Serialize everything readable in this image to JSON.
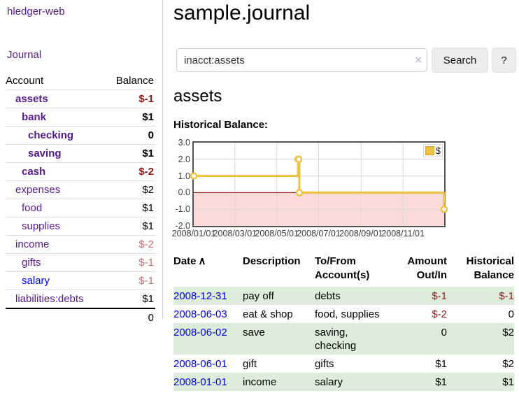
{
  "sidebar": {
    "app_title": "hledger-web",
    "nav": {
      "journal": "Journal"
    },
    "accounts_table": {
      "headers": {
        "account": "Account",
        "balance": "Balance"
      },
      "rows": [
        {
          "name": "assets",
          "indent": 1,
          "bold": true,
          "balance": "$-1",
          "balance_style": "neg-strong"
        },
        {
          "name": "bank",
          "indent": 2,
          "bold": true,
          "balance": "$1",
          "balance_style": "normal"
        },
        {
          "name": "checking",
          "indent": 3,
          "bold": true,
          "balance": "0",
          "balance_style": "normal"
        },
        {
          "name": "saving",
          "indent": 3,
          "bold": true,
          "balance": "$1",
          "balance_style": "normal"
        },
        {
          "name": "cash",
          "indent": 2,
          "bold": true,
          "balance": "$-2",
          "balance_style": "neg-strong"
        },
        {
          "name": "expenses",
          "indent": 1,
          "bold": false,
          "balance": "$2",
          "balance_style": "normal"
        },
        {
          "name": "food",
          "indent": 2,
          "bold": false,
          "balance": "$1",
          "balance_style": "normal"
        },
        {
          "name": "supplies",
          "indent": 2,
          "bold": false,
          "balance": "$1",
          "balance_style": "normal"
        },
        {
          "name": "income",
          "indent": 1,
          "bold": false,
          "balance": "$-2",
          "balance_style": "neg-soft"
        },
        {
          "name": "gifts",
          "indent": 2,
          "bold": false,
          "balance": "$-1",
          "balance_style": "neg-soft"
        },
        {
          "name": "salary",
          "indent": 2,
          "bold": false,
          "link_color": "blue",
          "balance": "$-1",
          "balance_style": "neg-soft"
        },
        {
          "name": "liabilities:debts",
          "indent": 1,
          "bold": false,
          "balance": "$1",
          "balance_style": "normal"
        }
      ],
      "total": "0"
    }
  },
  "header": {
    "title": "sample.journal"
  },
  "search": {
    "value": "inacct:assets",
    "clear_icon": "×",
    "button": "Search",
    "help_button": "?"
  },
  "account_page": {
    "heading": "assets",
    "chart_label": "Historical Balance:"
  },
  "chart_data": {
    "type": "line",
    "step": true,
    "title": "Historical Balance",
    "series": [
      {
        "name": "$",
        "color": "#edc240",
        "points": [
          {
            "date": "2008-01-01",
            "value": 1
          },
          {
            "date": "2008-06-01",
            "value": 2
          },
          {
            "date": "2008-06-02",
            "value": 2
          },
          {
            "date": "2008-06-03",
            "value": 0
          },
          {
            "date": "2008-12-31",
            "value": -1
          }
        ]
      }
    ],
    "x_domain": [
      "2008-01-01",
      "2008-12-31"
    ],
    "ylim": [
      -2,
      3
    ],
    "y_ticks": [
      "3.0",
      "2.0",
      "1.0",
      "0.0",
      "-1.0",
      "-2.0"
    ],
    "x_ticks": [
      {
        "label": "2008/01/01",
        "date": "2008-01-01"
      },
      {
        "label": "2008/03/01",
        "date": "2008-03-01"
      },
      {
        "label": "2008/05/01",
        "date": "2008-05-01"
      },
      {
        "label": "2008/07/01",
        "date": "2008-07-01"
      },
      {
        "label": "2008/09/01",
        "date": "2008-09-01"
      },
      {
        "label": "2008/11/01",
        "date": "2008-11-01"
      }
    ],
    "grid": true,
    "legend": {
      "position": "top-right",
      "label": "$"
    },
    "colors": {
      "grid_line": "#d7d7d7",
      "negative_region": "#fbdada",
      "zero_line": "#8b0000",
      "border": "#545454"
    }
  },
  "transactions": {
    "headers": {
      "date": "Date",
      "sort_icon": "∧",
      "description": "Description",
      "tofrom": "To/From Account(s)",
      "amount": "Amount Out/In",
      "balance": "Historical Balance"
    },
    "rows": [
      {
        "date": "2008-12-31",
        "description": "pay off",
        "accounts": "debts",
        "amount": "$-1",
        "amount_negative": true,
        "balance": "$-1",
        "balance_negative": true
      },
      {
        "date": "2008-06-03",
        "description": "eat & shop",
        "accounts": "food, supplies",
        "amount": "$-2",
        "amount_negative": true,
        "balance": "0",
        "balance_negative": false
      },
      {
        "date": "2008-06-02",
        "description": "save",
        "accounts": "saving, checking",
        "amount": "0",
        "amount_negative": false,
        "balance": "$2",
        "balance_negative": false
      },
      {
        "date": "2008-06-01",
        "description": "gift",
        "accounts": "gifts",
        "amount": "$1",
        "amount_negative": false,
        "balance": "$2",
        "balance_negative": false
      },
      {
        "date": "2008-01-01",
        "description": "income",
        "accounts": "salary",
        "amount": "$1",
        "amount_negative": false,
        "balance": "$1",
        "balance_negative": false
      }
    ]
  }
}
